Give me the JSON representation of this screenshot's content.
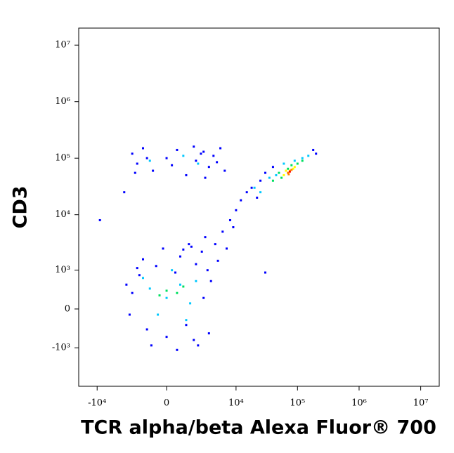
{
  "chart_data": {
    "type": "scatter",
    "xlabel": "TCR alpha/beta Alexa Fluor® 700",
    "ylabel": "CD3",
    "xscale": "arcsinh",
    "yscale": "arcsinh",
    "xlim": [
      -20000,
      20000000
    ],
    "ylim": [
      -5000,
      20000000
    ],
    "xticks": [
      {
        "value": -10000,
        "label": "-10⁴"
      },
      0,
      {
        "value": 10000,
        "label": "10⁴"
      },
      {
        "value": 100000,
        "label": "10⁵"
      },
      {
        "value": 1000000,
        "label": "10⁶"
      },
      {
        "value": 10000000,
        "label": "10⁷"
      }
    ],
    "yticks": [
      {
        "value": -1000,
        "label": "-10³"
      },
      0,
      {
        "value": 1000,
        "label": "10³"
      },
      {
        "value": 10000,
        "label": "10⁴"
      },
      {
        "value": 100000,
        "label": "10⁵"
      },
      {
        "value": 1000000,
        "label": "10⁶"
      },
      {
        "value": 10000000,
        "label": "10⁷"
      }
    ],
    "series": [
      {
        "color": "#0000ff",
        "x": [
          -2500,
          -1800,
          -1200,
          -600,
          0,
          500,
          1200,
          2000,
          2800,
          3500,
          -2800,
          -3200,
          1800,
          800,
          2600,
          3300,
          -1500,
          -200,
          1400,
          2200,
          -900,
          3800,
          600,
          1000,
          1600,
          -2000,
          -2500,
          -2000,
          -1500,
          -800,
          0,
          600,
          1200,
          2000,
          2800,
          3500,
          4200,
          5500,
          6500,
          -2200,
          300,
          1800,
          3000,
          4800,
          -1200,
          2500,
          4500,
          6000,
          8000,
          10000,
          12000,
          15000,
          18000,
          22000,
          25000,
          30000,
          180000,
          200000,
          5000,
          7000,
          3000,
          9000,
          40000,
          -9000,
          30000,
          -3500
        ],
        "y": [
          300,
          800,
          -400,
          1200,
          -600,
          900,
          -300,
          1300,
          200,
          -500,
          -100,
          500,
          -700,
          1800,
          2200,
          1000,
          1600,
          2500,
          3000,
          -900,
          -900,
          600,
          -1100,
          2400,
          2700,
          1100,
          120000,
          80000,
          150000,
          60000,
          100000,
          140000,
          50000,
          90000,
          130000,
          70000,
          110000,
          150000,
          60000,
          55000,
          75000,
          160000,
          45000,
          85000,
          100000,
          120000,
          3000,
          5000,
          8000,
          12000,
          18000,
          25000,
          30000,
          20000,
          40000,
          55000,
          140000,
          120000,
          1500,
          2500,
          4000,
          6000,
          70000,
          8000,
          900,
          25000
        ]
      },
      {
        "color": "#00c8ff",
        "x": [
          -1000,
          0,
          800,
          1500,
          -500,
          2000,
          300,
          1200,
          -1500,
          -1000,
          1000,
          2200,
          20000,
          25000,
          35000,
          45000,
          120000,
          150000,
          60000,
          90000
        ],
        "y": [
          400,
          200,
          500,
          100,
          -100,
          600,
          1000,
          -200,
          700,
          90000,
          110000,
          80000,
          30000,
          25000,
          45000,
          50000,
          100000,
          110000,
          80000,
          90000
        ]
      },
      {
        "color": "#00e060",
        "x": [
          0,
          600,
          -400,
          1000,
          40000,
          50000,
          70000,
          100000,
          55000,
          80000,
          120000
        ],
        "y": [
          350,
          300,
          250,
          450,
          40000,
          55000,
          65000,
          80000,
          45000,
          75000,
          90000
        ]
      },
      {
        "color": "#ffff00",
        "x": [
          60000,
          75000,
          90000,
          65000,
          85000
        ],
        "y": [
          50000,
          60000,
          70000,
          60000,
          65000
        ]
      },
      {
        "color": "#ff8000",
        "x": [
          70000,
          80000,
          72000
        ],
        "y": [
          55000,
          62000,
          52000
        ]
      },
      {
        "color": "#ff0000",
        "x": [
          75000
        ],
        "y": [
          58000
        ]
      }
    ]
  }
}
